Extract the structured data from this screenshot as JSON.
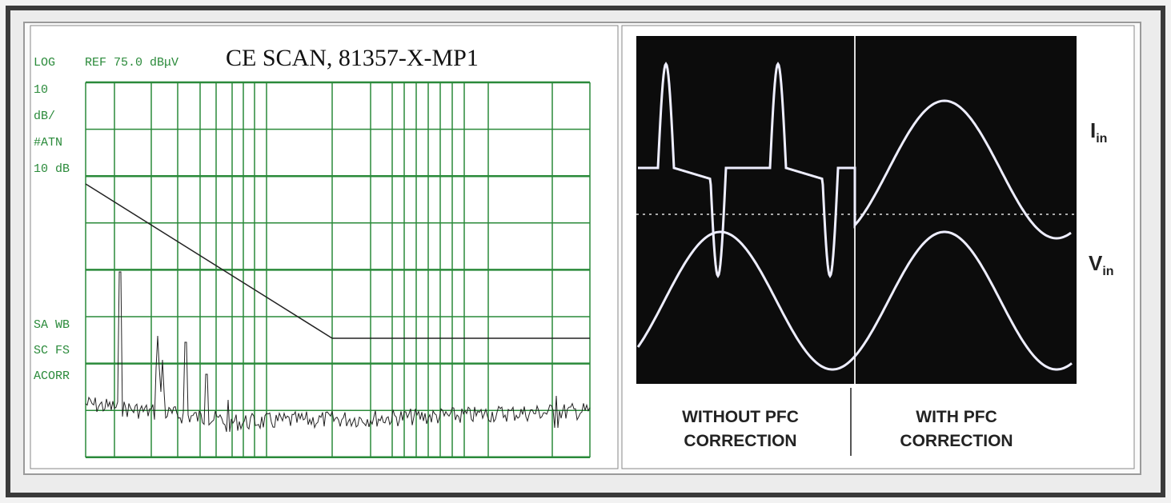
{
  "spectrum": {
    "title": "CE SCAN, 81357-X-MP1",
    "scale": "LOG",
    "reference": "REF 75.0 dBμV",
    "side_labels": [
      "10",
      "dB/",
      "#ATN",
      "10 dB",
      "SA WB",
      "SC FS",
      "ACORR"
    ]
  },
  "scope": {
    "traces": [
      {
        "label": "I",
        "subscript": "in"
      },
      {
        "label": "V",
        "subscript": "in"
      }
    ],
    "captions": [
      [
        "WITHOUT PFC",
        "CORRECTION"
      ],
      [
        "WITH PFC",
        "CORRECTION"
      ]
    ]
  }
}
